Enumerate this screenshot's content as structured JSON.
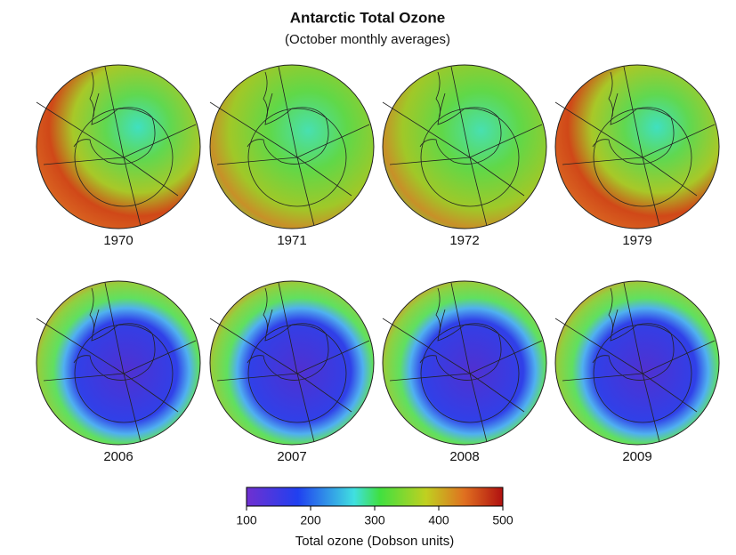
{
  "title": "Antarctic Total Ozone",
  "subtitle": "(October monthly averages)",
  "maps": [
    {
      "label": "1970"
    },
    {
      "label": "1971"
    },
    {
      "label": "1972"
    },
    {
      "label": "1979"
    },
    {
      "label": "2006"
    },
    {
      "label": "2007"
    },
    {
      "label": "2008"
    },
    {
      "label": "2009"
    }
  ],
  "colorbar": {
    "range": [
      100,
      500
    ],
    "ticks": [
      100,
      200,
      300,
      400,
      500
    ],
    "label": "Total ozone (Dobson units)"
  }
}
